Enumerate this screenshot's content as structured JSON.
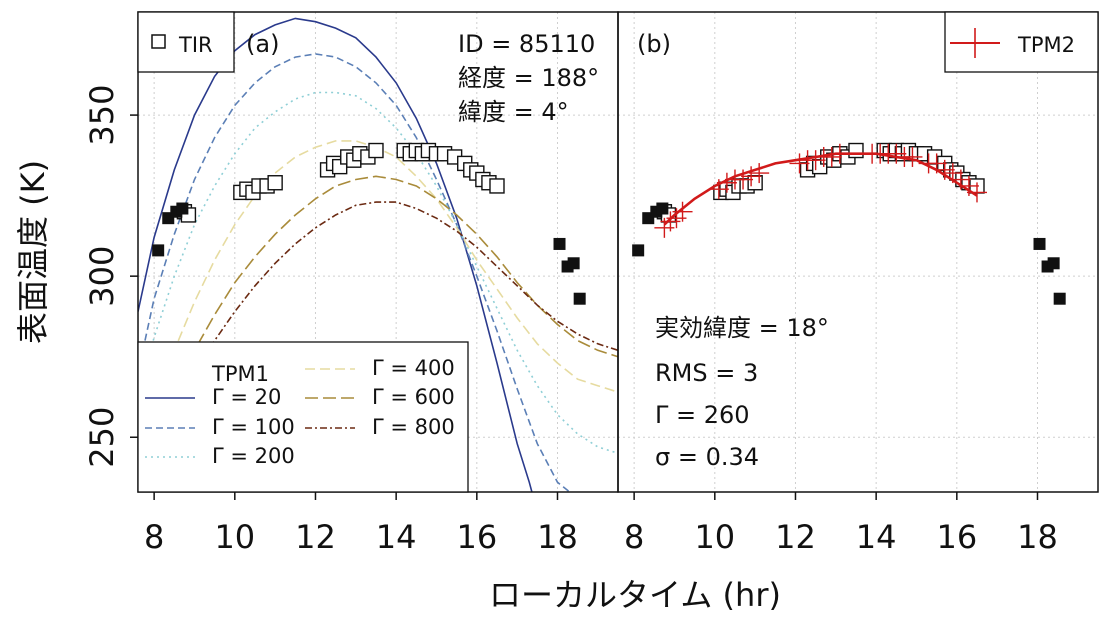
{
  "figure": {
    "ylabel": "表面温度 (K)",
    "xlabel": "ローカルタイム (hr)"
  },
  "axes": {
    "xlim": [
      7.6,
      19.5
    ],
    "ylim": [
      233,
      382
    ],
    "xticks": [
      8,
      10,
      12,
      14,
      16,
      18
    ],
    "yticks": [
      250,
      300,
      350
    ],
    "grid": true
  },
  "colors": {
    "g20": "#2a3a8c",
    "g100": "#5b7fb6",
    "g200": "#8fcfd6",
    "g400": "#e6dba0",
    "g600": "#a98b3a",
    "g800": "#6b2a12",
    "tpm2": "#d11a1a",
    "tir": "#111111"
  },
  "panel_a": {
    "tag": "(a)",
    "tir_legend": "TIR",
    "info": [
      "ID = 85110",
      "経度 = 188°",
      "緯度 = 4°"
    ],
    "legend_title": "TPM1",
    "legend_items": [
      {
        "key": "g20",
        "label": "Γ =   20"
      },
      {
        "key": "g100",
        "label": "Γ = 100"
      },
      {
        "key": "g200",
        "label": "Γ = 200"
      },
      {
        "key": "g400",
        "label": "Γ = 400"
      },
      {
        "key": "g600",
        "label": "Γ = 600"
      },
      {
        "key": "g800",
        "label": "Γ = 800"
      }
    ]
  },
  "panel_b": {
    "tag": "(b)",
    "tpm2_legend": "TPM2",
    "stats": [
      "実効緯度 = 18°",
      "RMS = 3",
      "Γ = 260",
      "σ = 0.34"
    ]
  },
  "chart_data": [
    {
      "type": "line",
      "panel": "a",
      "series": [
        {
          "key": "g20",
          "x": [
            7.6,
            8.0,
            8.5,
            9.0,
            9.5,
            10.0,
            10.5,
            11.0,
            11.5,
            12.0,
            12.5,
            13.0,
            13.5,
            14.0,
            14.5,
            15.0,
            15.5,
            16.0,
            16.5,
            17.0,
            17.3,
            17.6
          ],
          "y": [
            289,
            312,
            333,
            350,
            362,
            370,
            375,
            378,
            380,
            379,
            377,
            374,
            368,
            360,
            349,
            335,
            318,
            297,
            273,
            248,
            236,
            222
          ]
        },
        {
          "key": "g100",
          "x": [
            7.6,
            8.0,
            8.5,
            9.0,
            9.5,
            10.0,
            10.5,
            11.0,
            11.5,
            12.0,
            12.5,
            13.0,
            13.5,
            14.0,
            14.5,
            15.0,
            15.5,
            16.0,
            16.5,
            17.0,
            17.5,
            18.0,
            18.5
          ],
          "y": [
            270,
            293,
            313,
            330,
            343,
            353,
            360,
            365,
            368,
            369,
            368,
            365,
            360,
            353,
            343,
            330,
            316,
            300,
            283,
            265,
            248,
            236,
            231
          ]
        },
        {
          "key": "g200",
          "x": [
            7.6,
            8.0,
            8.5,
            9.0,
            9.5,
            10.0,
            10.5,
            11.0,
            11.5,
            12.0,
            12.5,
            13.0,
            13.5,
            14.0,
            14.5,
            15.0,
            15.5,
            16.0,
            16.5,
            17.0,
            17.5,
            18.0,
            18.5,
            19.0,
            19.5
          ],
          "y": [
            262,
            281,
            300,
            316,
            328,
            338,
            346,
            351,
            355,
            357,
            357,
            356,
            352,
            346,
            338,
            328,
            316,
            303,
            290,
            277,
            266,
            257,
            251,
            247,
            245
          ]
        },
        {
          "key": "g400",
          "x": [
            7.6,
            8.0,
            8.5,
            9.0,
            9.5,
            10.0,
            10.5,
            11.0,
            11.5,
            12.0,
            12.5,
            13.0,
            13.5,
            14.0,
            14.5,
            15.0,
            15.5,
            16.0,
            16.5,
            17.0,
            17.5,
            18.0,
            18.5,
            19.0,
            19.5
          ],
          "y": [
            240,
            260,
            277,
            292,
            305,
            316,
            325,
            332,
            337,
            340,
            342,
            342,
            340,
            337,
            331,
            324,
            315,
            305,
            296,
            287,
            279,
            273,
            268,
            266,
            264
          ]
        },
        {
          "key": "g600",
          "x": [
            7.6,
            8.0,
            8.5,
            9.0,
            9.5,
            10.0,
            10.5,
            11.0,
            11.5,
            12.0,
            12.5,
            13.0,
            13.5,
            14.0,
            14.5,
            15.0,
            15.5,
            16.0,
            16.5,
            17.0,
            17.5,
            18.0,
            18.5,
            19.0,
            19.5
          ],
          "y": [
            232,
            250,
            264,
            277,
            288,
            298,
            306,
            313,
            319,
            324,
            328,
            330,
            331,
            330,
            328,
            324,
            319,
            313,
            306,
            298,
            291,
            285,
            280,
            277,
            275
          ]
        },
        {
          "key": "g800",
          "x": [
            7.6,
            8.0,
            8.5,
            9.0,
            9.5,
            10.0,
            10.5,
            11.0,
            11.5,
            12.0,
            12.5,
            13.0,
            13.5,
            14.0,
            14.5,
            15.0,
            15.5,
            16.0,
            16.5,
            17.0,
            17.5,
            18.0,
            18.5,
            19.0,
            19.5
          ],
          "y": [
            232,
            246,
            258,
            270,
            280,
            289,
            297,
            304,
            310,
            315,
            319,
            322,
            323,
            323,
            321,
            318,
            314,
            309,
            303,
            297,
            291,
            286,
            282,
            279,
            277
          ]
        }
      ],
      "tir_open": {
        "x": [
          8.75,
          8.85,
          10.15,
          10.3,
          10.45,
          10.6,
          10.8,
          11.0,
          12.3,
          12.45,
          12.6,
          12.8,
          12.95,
          13.1,
          13.3,
          13.5,
          14.2,
          14.35,
          14.5,
          14.65,
          14.8,
          15.0,
          15.2,
          15.45,
          15.7,
          15.85,
          16.0,
          16.15,
          16.3,
          16.5
        ],
        "y": [
          320,
          319,
          326,
          327,
          326,
          328,
          328,
          329,
          333,
          335,
          334,
          337,
          336,
          338,
          337,
          339,
          339,
          338,
          339,
          338,
          339,
          338,
          338,
          337,
          335,
          333,
          332,
          330,
          329,
          328
        ]
      },
      "tir_filled": {
        "x": [
          8.1,
          8.35,
          8.55,
          8.7,
          18.05,
          18.25,
          18.4,
          18.55
        ],
        "y": [
          308,
          318,
          320,
          321,
          310,
          303,
          304,
          293
        ]
      }
    },
    {
      "type": "line",
      "panel": "b",
      "fit_line": {
        "key": "tpm2",
        "x": [
          8.75,
          9.0,
          9.5,
          10.0,
          10.5,
          11.0,
          11.5,
          12.0,
          12.5,
          13.0,
          13.5,
          14.0,
          14.5,
          15.0,
          15.5,
          16.0,
          16.5
        ],
        "y": [
          316,
          319,
          324,
          328,
          331,
          333,
          335,
          336,
          337,
          338,
          338,
          338,
          337,
          336,
          333,
          329,
          325
        ]
      },
      "fit_points": {
        "x": [
          8.75,
          8.9,
          9.05,
          9.2,
          10.1,
          10.3,
          10.5,
          10.7,
          10.9,
          11.1,
          12.1,
          12.3,
          12.5,
          12.7,
          12.9,
          13.1,
          13.9,
          14.1,
          14.3,
          14.5,
          14.7,
          14.9,
          15.3,
          15.5,
          15.7,
          15.9,
          16.1,
          16.3,
          16.5
        ],
        "y": [
          315,
          317,
          318,
          320,
          327,
          329,
          330,
          330,
          331,
          332,
          335,
          336,
          336,
          337,
          337,
          338,
          338,
          338,
          338,
          338,
          337,
          337,
          335,
          335,
          333,
          332,
          330,
          328,
          326
        ]
      },
      "tir_open": {
        "x": [
          8.75,
          8.85,
          10.15,
          10.3,
          10.45,
          10.6,
          10.8,
          11.0,
          12.3,
          12.45,
          12.6,
          12.8,
          12.95,
          13.1,
          13.3,
          13.5,
          14.2,
          14.35,
          14.5,
          14.65,
          14.8,
          15.0,
          15.2,
          15.45,
          15.7,
          15.85,
          16.0,
          16.15,
          16.3,
          16.5
        ],
        "y": [
          320,
          319,
          326,
          327,
          326,
          328,
          328,
          329,
          333,
          335,
          334,
          337,
          336,
          338,
          337,
          339,
          339,
          338,
          339,
          338,
          339,
          338,
          338,
          337,
          335,
          333,
          332,
          330,
          329,
          328
        ]
      },
      "tir_filled": {
        "x": [
          8.1,
          8.35,
          8.55,
          8.7,
          18.05,
          18.25,
          18.4,
          18.55
        ],
        "y": [
          308,
          318,
          320,
          321,
          310,
          303,
          304,
          293
        ]
      }
    }
  ]
}
